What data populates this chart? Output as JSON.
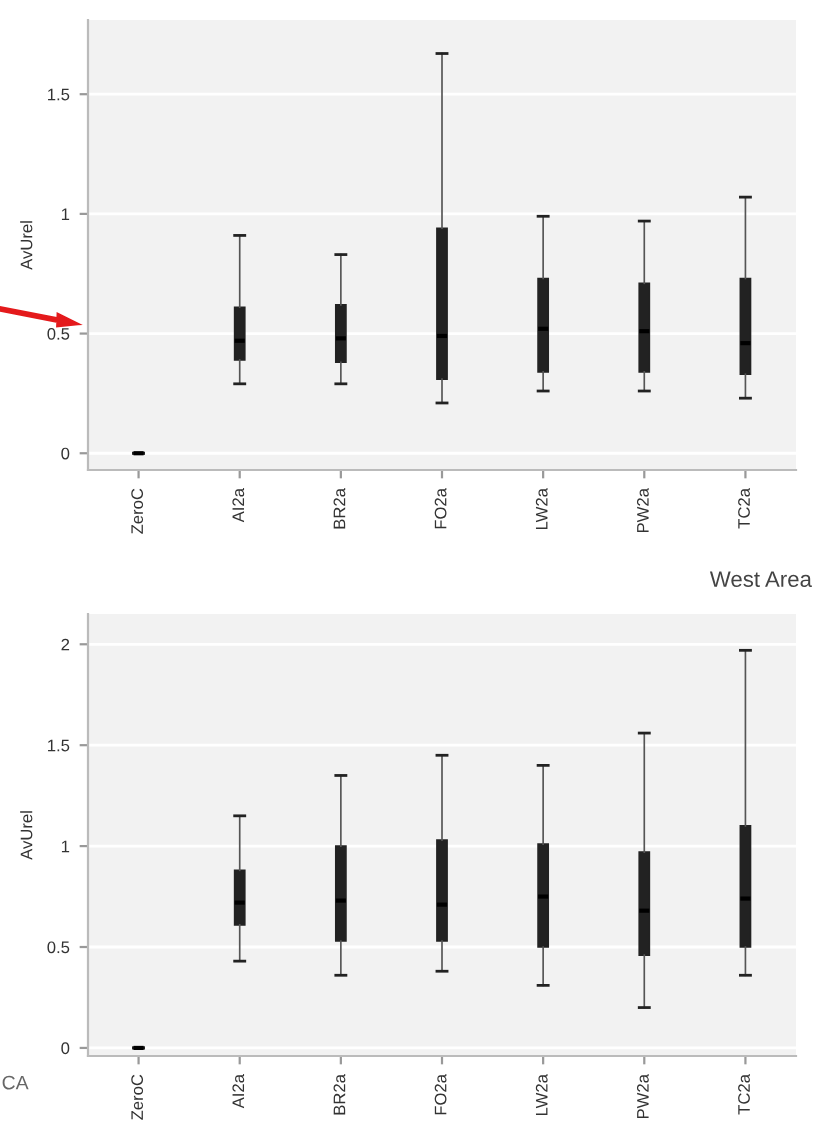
{
  "chart_data": [
    {
      "type": "box",
      "ylabel": "AvUrel",
      "categories": [
        "ZeroC",
        "AI2a",
        "BR2a",
        "FO2a",
        "LW2a",
        "PW2a",
        "TC2a"
      ],
      "ylim": [
        -0.07,
        1.81
      ],
      "yticks": [
        0,
        0.5,
        1,
        1.5
      ],
      "grid": "y",
      "color": "#222222",
      "boxes": [
        {
          "low": 0,
          "q1": 0,
          "median": 0,
          "q3": 0,
          "high": 0
        },
        {
          "low": 0.29,
          "q1": 0.39,
          "median": 0.47,
          "q3": 0.61,
          "high": 0.91
        },
        {
          "low": 0.29,
          "q1": 0.38,
          "median": 0.48,
          "q3": 0.62,
          "high": 0.83
        },
        {
          "low": 0.21,
          "q1": 0.31,
          "median": 0.49,
          "q3": 0.94,
          "high": 1.67
        },
        {
          "low": 0.26,
          "q1": 0.34,
          "median": 0.52,
          "q3": 0.73,
          "high": 0.99
        },
        {
          "low": 0.26,
          "q1": 0.34,
          "median": 0.51,
          "q3": 0.71,
          "high": 0.97
        },
        {
          "low": 0.23,
          "q1": 0.33,
          "median": 0.46,
          "q3": 0.73,
          "high": 1.07
        }
      ]
    },
    {
      "type": "box",
      "title": "West Area",
      "ylabel": "AvUrel",
      "annotations": [
        "CA"
      ],
      "categories": [
        "ZeroC",
        "AI2a",
        "BR2a",
        "FO2a",
        "LW2a",
        "PW2a",
        "TC2a"
      ],
      "ylim": [
        -0.04,
        2.15
      ],
      "yticks": [
        0,
        0.5,
        1,
        1.5,
        2
      ],
      "grid": "y",
      "color": "#222222",
      "boxes": [
        {
          "low": 0,
          "q1": 0,
          "median": 0,
          "q3": 0,
          "high": 0
        },
        {
          "low": 0.43,
          "q1": 0.61,
          "median": 0.72,
          "q3": 0.88,
          "high": 1.15
        },
        {
          "low": 0.36,
          "q1": 0.53,
          "median": 0.73,
          "q3": 1.0,
          "high": 1.35
        },
        {
          "low": 0.38,
          "q1": 0.53,
          "median": 0.71,
          "q3": 1.03,
          "high": 1.45
        },
        {
          "low": 0.31,
          "q1": 0.5,
          "median": 0.75,
          "q3": 1.01,
          "high": 1.4
        },
        {
          "low": 0.2,
          "q1": 0.46,
          "median": 0.68,
          "q3": 0.97,
          "high": 1.56
        },
        {
          "low": 0.36,
          "q1": 0.5,
          "median": 0.74,
          "q3": 1.1,
          "high": 1.97
        }
      ]
    }
  ]
}
